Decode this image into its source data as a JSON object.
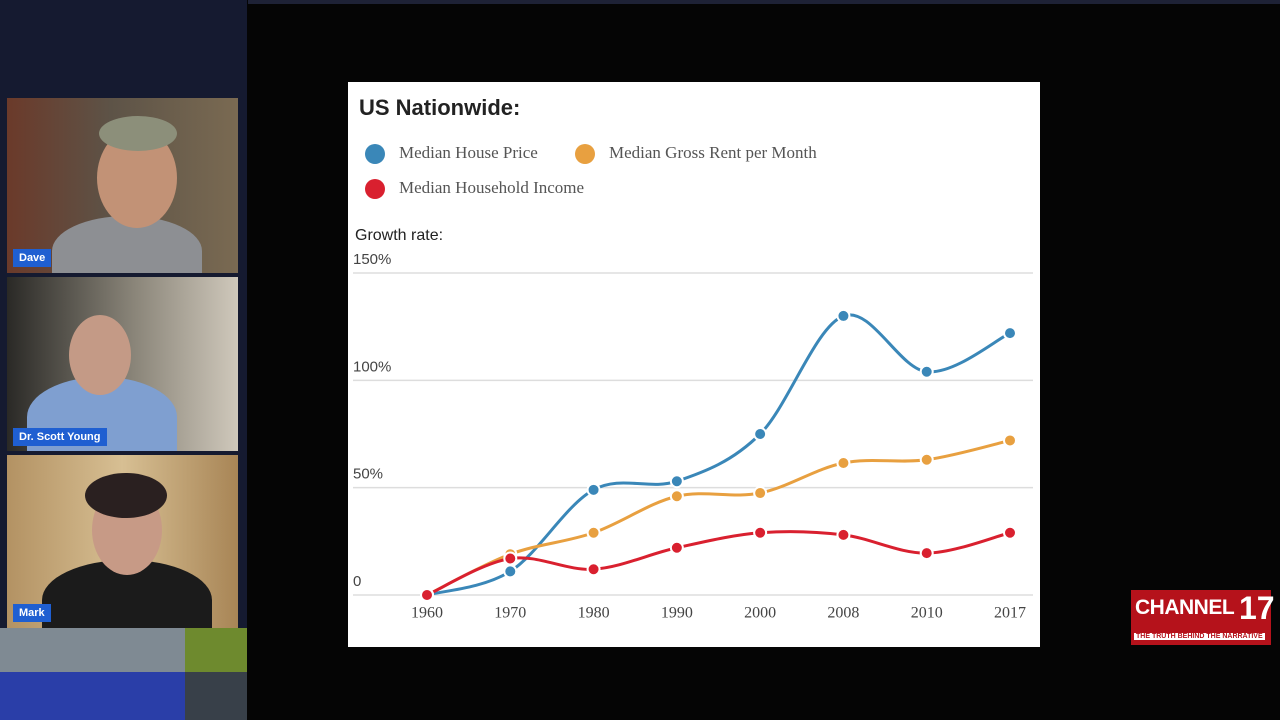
{
  "participants": [
    "Dave",
    "Dr. Scott Young",
    "Mark"
  ],
  "logo": {
    "name": "CHANNEL",
    "number": "17",
    "tagline": "THE TRUTH BEHIND THE NARRATIVE"
  },
  "chart_data": {
    "type": "line",
    "title": "US Nationwide:",
    "y_label": "Growth rate:",
    "categories": [
      "1960",
      "1970",
      "1980",
      "1990",
      "2000",
      "2008",
      "2010",
      "2017"
    ],
    "series": [
      {
        "name": "Median House Price",
        "color": "#3a87b8",
        "values": [
          0,
          11,
          49,
          53,
          75,
          130,
          104,
          122
        ]
      },
      {
        "name": "Median Gross Rent per Month",
        "color": "#e8a040",
        "values": [
          0,
          19,
          29,
          46,
          47.5,
          61.5,
          63,
          72
        ]
      },
      {
        "name": "Median Household Income",
        "color": "#d9202f",
        "values": [
          0,
          17,
          12,
          22,
          29,
          28,
          19.5,
          29
        ]
      }
    ],
    "ylim": [
      0,
      150
    ],
    "yticks": [
      0,
      {
        "value": 50,
        "label": "50%"
      },
      {
        "value": 100,
        "label": "100%"
      },
      {
        "value": 150,
        "label": "150%"
      }
    ],
    "grid": true
  }
}
